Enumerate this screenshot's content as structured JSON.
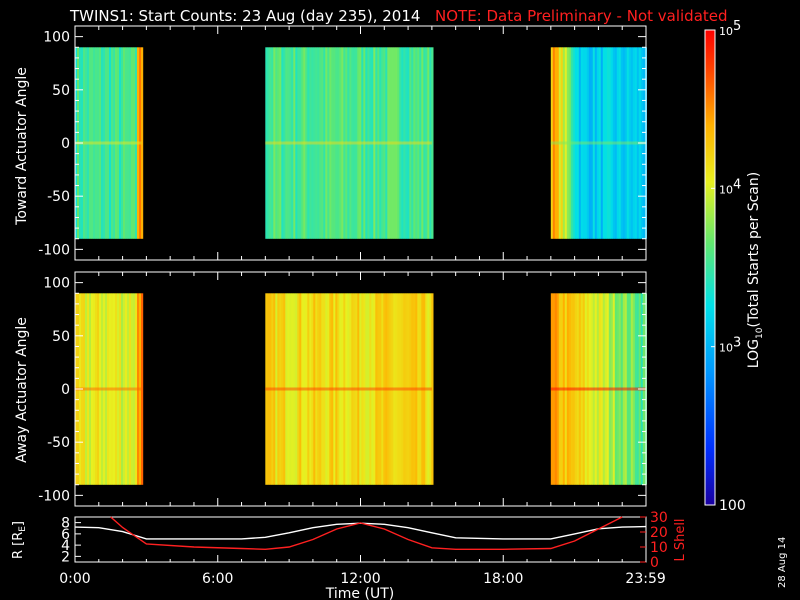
{
  "header": {
    "title": "TWINS1: Start Counts: 23 Aug (day 235), 2014",
    "note": "NOTE: Data Preliminary - Not validated"
  },
  "colors": {
    "axes": "#ffffff",
    "background": "#000000",
    "red_series": "#ff2020",
    "white_series": "#ffffff"
  },
  "footer": {
    "date_stamp": "28 Aug 14"
  },
  "chart_data": [
    {
      "type": "heatmap",
      "panel": "toward",
      "ylabel": "Toward Actuator Angle",
      "ylim": [
        -110,
        110
      ],
      "yticks": [
        "100",
        "50",
        "0",
        "-50",
        "-100"
      ],
      "xlim_hours": [
        0,
        24
      ],
      "angle_range": [
        -90,
        90
      ],
      "data_blocks": [
        {
          "start_hour": 0.0,
          "end_hour": 2.8,
          "level": 0.5,
          "edge_level": 0.82
        },
        {
          "start_hour": 8.0,
          "end_hour": 15.0,
          "level": 0.52
        },
        {
          "start_hour": 20.0,
          "end_hour": 24.0,
          "level": 0.38,
          "start_level": 0.8
        }
      ]
    },
    {
      "type": "heatmap",
      "panel": "away",
      "ylabel": "Away Actuator Angle",
      "ylim": [
        -110,
        110
      ],
      "yticks": [
        "100",
        "50",
        "0",
        "-50",
        "-100"
      ],
      "xlim_hours": [
        0,
        24
      ],
      "angle_range": [
        -90,
        90
      ],
      "data_blocks": [
        {
          "start_hour": 0.0,
          "end_hour": 2.8,
          "level": 0.68,
          "edge_level": 0.85
        },
        {
          "start_hour": 8.0,
          "end_hour": 15.0,
          "level": 0.72
        },
        {
          "start_hour": 20.0,
          "end_hour": 24.0,
          "level": 0.8,
          "end_level": 0.52
        }
      ]
    },
    {
      "type": "line",
      "panel": "orbit",
      "ylabel": "R [R",
      "ylabel_sub": "E",
      "ylabel_end": "]",
      "ylim": [
        1,
        9
      ],
      "yticks": [
        "8",
        "6",
        "4",
        "2"
      ],
      "y2label": "L Shell",
      "y2lim": [
        0,
        30
      ],
      "y2ticks": [
        "30",
        "20",
        "10",
        "0"
      ],
      "xlabel": "Time (UT)",
      "xticks": [
        "0:00",
        "6:00",
        "12:00",
        "18:00",
        "23:59"
      ],
      "xtick_hours": [
        0,
        6,
        12,
        18,
        23.983
      ],
      "series": [
        {
          "axis": "left",
          "color": "white",
          "x": [
            0,
            1,
            2,
            3,
            5,
            7,
            8,
            9,
            10,
            11,
            12,
            13,
            14,
            15,
            16,
            18,
            20,
            21,
            22,
            23,
            24
          ],
          "y": [
            7.2,
            7.1,
            6.4,
            5.1,
            5.1,
            5.1,
            5.4,
            6.2,
            7.1,
            7.7,
            7.9,
            7.7,
            7.1,
            6.2,
            5.3,
            5.1,
            5.1,
            6.0,
            6.9,
            7.2,
            7.3
          ]
        },
        {
          "axis": "right",
          "color": "red",
          "x": [
            1.5,
            2,
            3,
            5,
            7,
            8,
            9,
            10,
            11,
            12,
            13,
            14,
            15,
            16,
            18,
            20,
            21,
            22,
            23
          ],
          "y": [
            30,
            23,
            12,
            10,
            9,
            8.5,
            10,
            15,
            22,
            26,
            22,
            15,
            9.5,
            8.5,
            8.5,
            9,
            14,
            22,
            30
          ]
        }
      ]
    },
    {
      "type": "heatmap",
      "panel": "colorbar",
      "label": "LOG",
      "label_sub": "10",
      "label_tail": "(Total Starts per Scan)",
      "scale": "log",
      "range": [
        100,
        100000
      ],
      "tick_labels": [
        {
          "value": 100,
          "base": "100",
          "exp": ""
        },
        {
          "value": 1000,
          "base": "10",
          "exp": "3"
        },
        {
          "value": 10000,
          "base": "10",
          "exp": "4"
        },
        {
          "value": 100000,
          "base": "10",
          "exp": "5"
        }
      ]
    }
  ]
}
